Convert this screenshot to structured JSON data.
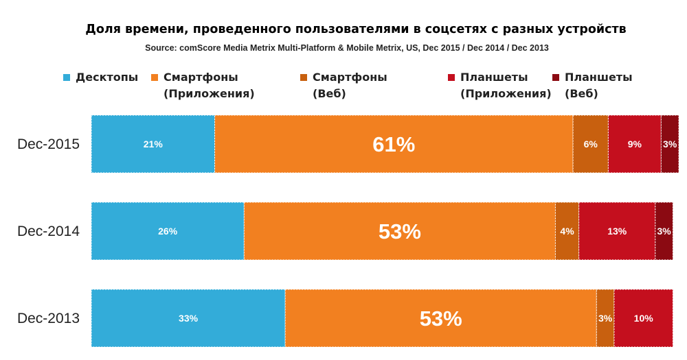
{
  "chart_data": {
    "type": "bar",
    "orientation": "horizontal",
    "stacked": true,
    "title": "Доля времени, проведенного пользователями в соцсетях с разных устройств",
    "subtitle": "Source: comScore Media Metrix Multi-Platform & Mobile Metrix, US, Dec 2015 / Dec 2014 / Dec 2013",
    "xlabel": "",
    "ylabel": "",
    "xlim": [
      0,
      100
    ],
    "grid": false,
    "legend_position": "top",
    "categories": [
      "Dec-2015",
      "Dec-2014",
      "Dec-2013"
    ],
    "series": [
      {
        "name": "Десктопы",
        "legend_lines": [
          "Десктопы"
        ],
        "color": "#33acd9",
        "values": [
          21,
          26,
          33
        ],
        "labels": [
          "21%",
          "26%",
          "33%"
        ]
      },
      {
        "name": "Смартфоны (Приложения)",
        "legend_lines": [
          "Смартфоны",
          "(Приложения)"
        ],
        "color": "#f28020",
        "values": [
          61,
          53,
          53
        ],
        "labels": [
          "61%",
          "53%",
          "53%"
        ]
      },
      {
        "name": "Смартфоны (Веб)",
        "legend_lines": [
          "Смартфоны",
          "(Веб)"
        ],
        "color": "#c8600f",
        "values": [
          6,
          4,
          3
        ],
        "labels": [
          "6%",
          "4%",
          "3%"
        ]
      },
      {
        "name": "Планшеты (Приложения)",
        "legend_lines": [
          "Планшеты",
          "(Приложения)"
        ],
        "color": "#c40f1e",
        "values": [
          9,
          13,
          10
        ],
        "labels": [
          "9%",
          "13%",
          "10%"
        ]
      },
      {
        "name": "Планшеты (Веб)",
        "legend_lines": [
          "Планшеты",
          "(Веб)"
        ],
        "color": "#8b0a12",
        "values": [
          3,
          3,
          0
        ],
        "labels": [
          "3%",
          "3%",
          ""
        ]
      }
    ]
  }
}
